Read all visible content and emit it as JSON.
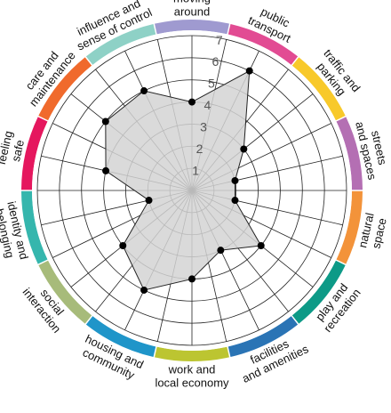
{
  "chart_data": {
    "type": "radar",
    "scale": {
      "min": 0,
      "max": 7,
      "ticks": [
        "1",
        "2",
        "3",
        "4",
        "5",
        "6",
        "7"
      ]
    },
    "grid": true,
    "categories": [
      {
        "label_lines": [
          "moving",
          "around"
        ],
        "color": "#9f9ad0"
      },
      {
        "label_lines": [
          "public",
          "transport"
        ],
        "color": "#e24b93"
      },
      {
        "label_lines": [
          "traffic and",
          "parking"
        ],
        "color": "#f8c92a"
      },
      {
        "label_lines": [
          "streets",
          "and spaces"
        ],
        "color": "#b46fb3"
      },
      {
        "label_lines": [
          "natural",
          "space"
        ],
        "color": "#f3933a"
      },
      {
        "label_lines": [
          "play and",
          "recreation"
        ],
        "color": "#0d9a87"
      },
      {
        "label_lines": [
          "facilities",
          "and amenities"
        ],
        "color": "#2a74b5"
      },
      {
        "label_lines": [
          "work and",
          "local economy"
        ],
        "color": "#bcc531"
      },
      {
        "label_lines": [
          "housing and",
          "community"
        ],
        "color": "#1f95c9"
      },
      {
        "label_lines": [
          "social",
          "interaction"
        ],
        "color": "#a7bb7a"
      },
      {
        "label_lines": [
          "identity and",
          "belonging"
        ],
        "color": "#35b6ad"
      },
      {
        "label_lines": [
          "feeling",
          "safe"
        ],
        "color": "#e5175e"
      },
      {
        "label_lines": [
          "care and",
          "maintenance"
        ],
        "color": "#f06a2c"
      },
      {
        "label_lines": [
          "influence and",
          "sense of control"
        ],
        "color": "#8ed1c6"
      }
    ],
    "series": [
      {
        "values": [
          4,
          6,
          3,
          2,
          2,
          4,
          3,
          4,
          5,
          4,
          2,
          4,
          5,
          5
        ]
      }
    ],
    "fill_color": "#d3d3d3",
    "line_color": "#222222"
  }
}
